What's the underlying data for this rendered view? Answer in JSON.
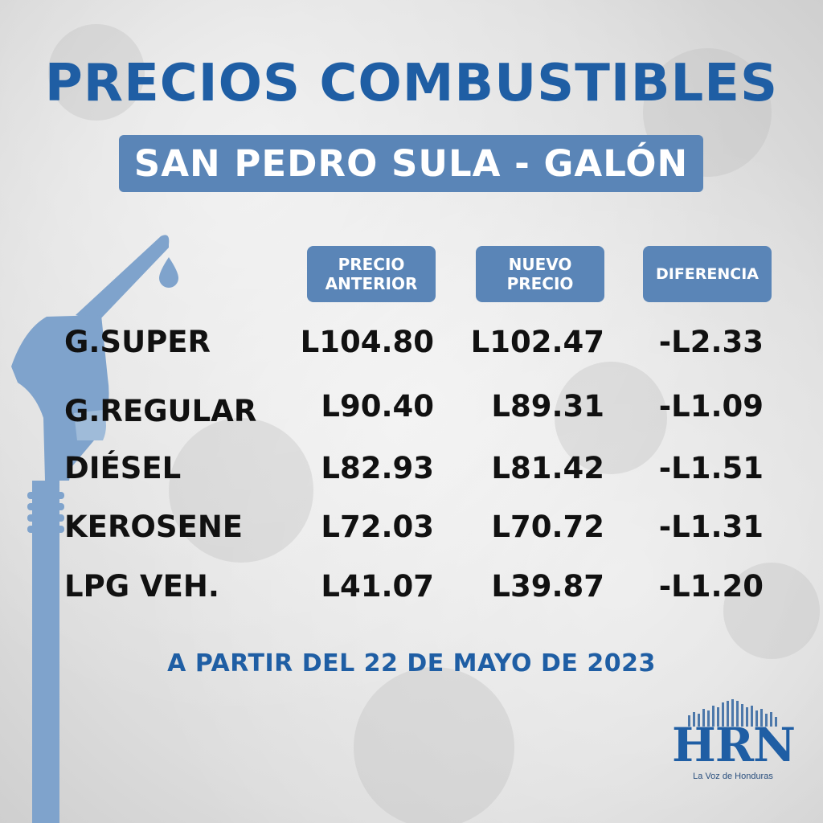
{
  "header": {
    "title": "PRECIOS COMBUSTIBLES",
    "subtitle": "SAN PEDRO SULA - GALÓN"
  },
  "columns": {
    "previous": "PRECIO\nANTERIOR",
    "new": "NUEVO\nPRECIO",
    "difference": "DIFERENCIA"
  },
  "rows": [
    {
      "name": "G.SUPER",
      "previous": "L104.80",
      "new": "L102.47",
      "difference": "-L2.33"
    },
    {
      "name": "G.REGULAR",
      "previous": "L90.40",
      "new": "L89.31",
      "difference": "-L1.09"
    },
    {
      "name": "DIÉSEL",
      "previous": "L82.93",
      "new": "L81.42",
      "difference": "-L1.51"
    },
    {
      "name": "KEROSENE",
      "previous": "L72.03",
      "new": "L70.72",
      "difference": "-L1.31"
    },
    {
      "name": "LPG VEH.",
      "previous": "L41.07",
      "new": "L39.87",
      "difference": "-L1.20"
    }
  ],
  "footer": {
    "effective_date": "A PARTIR DEL 22 DE MAYO DE 2023"
  },
  "logo": {
    "name": "HRN",
    "tagline": "La Voz de Honduras"
  },
  "icons": {
    "pump": "fuel-nozzle-icon"
  },
  "colors": {
    "title": "#1f5ea4",
    "band": "#5a85b7",
    "pump": "#7fa3cc",
    "text": "#111111"
  }
}
